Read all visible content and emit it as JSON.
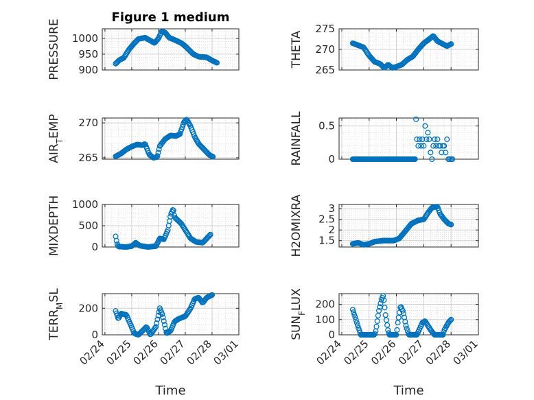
{
  "figure": {
    "title": "Figure 1 medium",
    "xlabel": "Time",
    "xticks": [
      "02/24",
      "02/25",
      "02/26",
      "02/27",
      "02/28",
      "03/01"
    ],
    "x_start_day": 24.4,
    "x_end_day": 28.5
  },
  "style": {
    "marker_color": "#0072BD",
    "axis_color": "#262626",
    "grid_color": "#dcdcdc",
    "background": "#ffffff"
  },
  "chart_data": [
    {
      "id": "pressure",
      "type": "scatter",
      "ylabel": "PRESSURE",
      "ylim": [
        900,
        1030
      ],
      "yticks": [
        "900",
        "950",
        "1000"
      ],
      "ytick_values": [
        900,
        950,
        1000
      ],
      "keypoints": [
        [
          24.4,
          920
        ],
        [
          24.55,
          932
        ],
        [
          24.7,
          938
        ],
        [
          24.9,
          965
        ],
        [
          25.1,
          985
        ],
        [
          25.25,
          998
        ],
        [
          25.5,
          1002
        ],
        [
          25.75,
          990
        ],
        [
          25.85,
          985
        ],
        [
          26.0,
          1000
        ],
        [
          26.12,
          1022
        ],
        [
          26.25,
          1018
        ],
        [
          26.4,
          1002
        ],
        [
          26.6,
          995
        ],
        [
          26.85,
          985
        ],
        [
          27.0,
          975
        ],
        [
          27.3,
          950
        ],
        [
          27.5,
          942
        ],
        [
          27.8,
          940
        ],
        [
          28.0,
          930
        ],
        [
          28.2,
          922
        ]
      ]
    },
    {
      "id": "theta",
      "type": "scatter",
      "ylabel": "THETA",
      "ylim": [
        265,
        275
      ],
      "yticks": [
        "265",
        "270",
        "275"
      ],
      "ytick_values": [
        265,
        270,
        275
      ],
      "keypoints": [
        [
          24.4,
          271.5
        ],
        [
          24.6,
          271
        ],
        [
          24.8,
          270.5
        ],
        [
          25.0,
          268.5
        ],
        [
          25.2,
          267
        ],
        [
          25.4,
          266.5
        ],
        [
          25.55,
          265.5
        ],
        [
          25.7,
          266.3
        ],
        [
          25.85,
          265.5
        ],
        [
          26.0,
          265.8
        ],
        [
          26.2,
          266.3
        ],
        [
          26.4,
          267.5
        ],
        [
          26.6,
          268.3
        ],
        [
          26.8,
          270
        ],
        [
          27.0,
          271.5
        ],
        [
          27.2,
          272.5
        ],
        [
          27.35,
          273.3
        ],
        [
          27.5,
          272
        ],
        [
          27.7,
          271.3
        ],
        [
          27.85,
          270.8
        ],
        [
          28.0,
          271.3
        ]
      ]
    },
    {
      "id": "air_temp",
      "type": "scatter",
      "ylabel_main": "AIR",
      "ylabel_sub": "T",
      "ylabel_tail": "EMP",
      "ylim": [
        264.8,
        270.7
      ],
      "yticks": [
        "265",
        "270"
      ],
      "ytick_values": [
        265,
        270
      ],
      "keypoints": [
        [
          24.4,
          265.2
        ],
        [
          24.6,
          265.6
        ],
        [
          24.8,
          266.2
        ],
        [
          25.0,
          266.6
        ],
        [
          25.2,
          266.9
        ],
        [
          25.4,
          266.8
        ],
        [
          25.5,
          267
        ],
        [
          25.65,
          265.5
        ],
        [
          25.8,
          265
        ],
        [
          25.95,
          265.1
        ],
        [
          26.05,
          266.7
        ],
        [
          26.25,
          267.7
        ],
        [
          26.45,
          268.2
        ],
        [
          26.65,
          268.1
        ],
        [
          26.8,
          268.4
        ],
        [
          26.95,
          270.1
        ],
        [
          27.05,
          270.5
        ],
        [
          27.2,
          269.5
        ],
        [
          27.35,
          268
        ],
        [
          27.5,
          267
        ],
        [
          27.7,
          266.2
        ],
        [
          27.9,
          265.4
        ],
        [
          28.05,
          265.1
        ]
      ]
    },
    {
      "id": "rainfall",
      "type": "scatter",
      "ylabel": "RAINFALL",
      "ylim": [
        0,
        0.62
      ],
      "yticks": [
        "0",
        "0.5"
      ],
      "ytick_values": [
        0,
        0.5
      ],
      "flat_until": 26.7,
      "points": [
        [
          26.72,
          0.6
        ],
        [
          26.75,
          0.3
        ],
        [
          26.8,
          0.2
        ],
        [
          26.85,
          0.3
        ],
        [
          26.9,
          0.2
        ],
        [
          26.95,
          0.3
        ],
        [
          27.0,
          0.2
        ],
        [
          27.05,
          0.5
        ],
        [
          27.1,
          0.3
        ],
        [
          27.15,
          0.4
        ],
        [
          27.2,
          0.3
        ],
        [
          27.25,
          0.1
        ],
        [
          27.3,
          0.0
        ],
        [
          27.35,
          0.2
        ],
        [
          27.4,
          0.3
        ],
        [
          27.45,
          0.2
        ],
        [
          27.5,
          0.3
        ],
        [
          27.55,
          0.2
        ],
        [
          27.6,
          0.2
        ],
        [
          27.65,
          0.1
        ],
        [
          27.7,
          0.2
        ],
        [
          27.75,
          0.2
        ],
        [
          27.8,
          0.1
        ],
        [
          27.85,
          0.3
        ],
        [
          27.9,
          0.0
        ],
        [
          27.95,
          0.0
        ],
        [
          28.0,
          0.0
        ],
        [
          28.05,
          0.0
        ]
      ]
    },
    {
      "id": "mixdepth",
      "type": "scatter",
      "ylabel": "MIXDEPTH",
      "ylim": [
        0,
        1000
      ],
      "yticks": [
        "0",
        "500",
        "1000"
      ],
      "ytick_values": [
        0,
        500,
        1000
      ],
      "keypoints": [
        [
          24.4,
          250
        ],
        [
          24.45,
          80
        ],
        [
          24.5,
          10
        ],
        [
          24.8,
          0
        ],
        [
          25.0,
          20
        ],
        [
          25.15,
          100
        ],
        [
          25.3,
          30
        ],
        [
          25.6,
          0
        ],
        [
          25.9,
          20
        ],
        [
          26.05,
          200
        ],
        [
          26.2,
          180
        ],
        [
          26.35,
          400
        ],
        [
          26.45,
          750
        ],
        [
          26.55,
          900
        ],
        [
          26.6,
          700
        ],
        [
          26.85,
          550
        ],
        [
          27.0,
          400
        ],
        [
          27.2,
          200
        ],
        [
          27.4,
          120
        ],
        [
          27.65,
          100
        ],
        [
          27.8,
          200
        ],
        [
          27.95,
          300
        ]
      ]
    },
    {
      "id": "h2omixra",
      "type": "scatter",
      "ylabel": "H2OMIXRA",
      "ylim": [
        1.2,
        3.2
      ],
      "yticks": [
        "1.5",
        "2",
        "2.5",
        "3"
      ],
      "ytick_values": [
        1.5,
        2,
        2.5,
        3
      ],
      "keypoints": [
        [
          24.4,
          1.35
        ],
        [
          24.6,
          1.4
        ],
        [
          24.8,
          1.3
        ],
        [
          25.0,
          1.35
        ],
        [
          25.2,
          1.45
        ],
        [
          25.5,
          1.5
        ],
        [
          25.75,
          1.5
        ],
        [
          25.9,
          1.5
        ],
        [
          26.1,
          1.6
        ],
        [
          26.3,
          1.9
        ],
        [
          26.55,
          2.3
        ],
        [
          26.8,
          2.45
        ],
        [
          27.0,
          2.5
        ],
        [
          27.15,
          2.8
        ],
        [
          27.3,
          3.05
        ],
        [
          27.5,
          3.1
        ],
        [
          27.6,
          2.75
        ],
        [
          27.75,
          2.5
        ],
        [
          27.9,
          2.3
        ],
        [
          28.0,
          2.25
        ]
      ]
    },
    {
      "id": "terr_msl",
      "type": "scatter",
      "ylabel_main": "TERR",
      "ylabel_sub": "M",
      "ylabel_tail": "SL",
      "ylim": [
        0,
        310
      ],
      "yticks": [
        "0",
        "200"
      ],
      "ytick_values": [
        0,
        200
      ],
      "keypoints": [
        [
          24.4,
          180
        ],
        [
          24.5,
          120
        ],
        [
          24.6,
          160
        ],
        [
          24.8,
          150
        ],
        [
          24.95,
          80
        ],
        [
          25.1,
          10
        ],
        [
          25.25,
          0
        ],
        [
          25.4,
          30
        ],
        [
          25.55,
          60
        ],
        [
          25.7,
          0
        ],
        [
          25.9,
          60
        ],
        [
          26.05,
          200
        ],
        [
          26.15,
          150
        ],
        [
          26.3,
          10
        ],
        [
          26.45,
          30
        ],
        [
          26.6,
          100
        ],
        [
          26.75,
          120
        ],
        [
          27.0,
          140
        ],
        [
          27.2,
          200
        ],
        [
          27.35,
          270
        ],
        [
          27.5,
          280
        ],
        [
          27.65,
          240
        ],
        [
          27.8,
          280
        ],
        [
          28.0,
          300
        ]
      ]
    },
    {
      "id": "sun_flux",
      "type": "scatter",
      "ylabel_main": "SUN",
      "ylabel_sub": "F",
      "ylabel_tail": "LUX",
      "ylim": [
        0,
        270
      ],
      "yticks": [
        "0",
        "100",
        "200"
      ],
      "ytick_values": [
        0,
        100,
        200
      ],
      "keypoints": [
        [
          24.4,
          165
        ],
        [
          24.5,
          110
        ],
        [
          24.6,
          50
        ],
        [
          24.7,
          0
        ],
        [
          25.2,
          0
        ],
        [
          25.25,
          30
        ],
        [
          25.35,
          150
        ],
        [
          25.45,
          230
        ],
        [
          25.52,
          260
        ],
        [
          25.6,
          130
        ],
        [
          25.7,
          20
        ],
        [
          25.75,
          0
        ],
        [
          26.0,
          0
        ],
        [
          26.05,
          80
        ],
        [
          26.15,
          190
        ],
        [
          26.25,
          150
        ],
        [
          26.35,
          60
        ],
        [
          26.45,
          0
        ],
        [
          26.75,
          0
        ],
        [
          26.8,
          20
        ],
        [
          26.95,
          80
        ],
        [
          27.05,
          90
        ],
        [
          27.15,
          60
        ],
        [
          27.3,
          20
        ],
        [
          27.4,
          0
        ],
        [
          27.7,
          0
        ],
        [
          27.75,
          30
        ],
        [
          27.9,
          80
        ],
        [
          28.0,
          100
        ]
      ]
    }
  ]
}
